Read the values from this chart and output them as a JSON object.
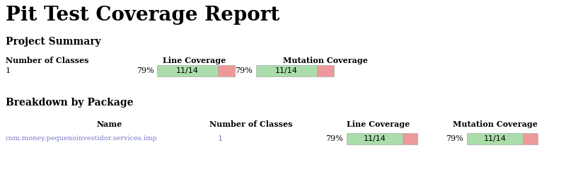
{
  "title": "Pit Test Coverage Report",
  "bg_color": "#ffffff",
  "title_color": "#000000",
  "title_fontsize": 20,
  "section1_label": "Project Summary",
  "section2_label": "Breakdown by Package",
  "section_fontsize": 10,
  "section_color": "#000000",
  "header_row1": [
    "Number of Classes",
    "Line Coverage",
    "Mutation Coverage"
  ],
  "data_row1": {
    "num_classes": "1",
    "line_pct": "79%",
    "line_bar_label": "11/14",
    "line_covered": 11,
    "line_total": 14,
    "mut_pct": "79%",
    "mut_bar_label": "11/14",
    "mut_covered": 11,
    "mut_total": 14
  },
  "header_row2": [
    "Name",
    "Number of Classes",
    "Line Coverage",
    "Mutation Coverage"
  ],
  "data_row2": {
    "name": "com.money.pequenoinvestidor.services.imp",
    "name_color": "#7777cc",
    "num_classes": "1",
    "line_pct": "79%",
    "line_bar_label": "11/14",
    "line_covered": 11,
    "line_total": 14,
    "mut_pct": "79%",
    "mut_bar_label": "11/14",
    "mut_covered": 11,
    "mut_total": 14
  },
  "bar_green": "#aaddaa",
  "bar_red": "#ee9999",
  "bar_border": "#aaaaaa",
  "header_fontsize": 8,
  "data_fontsize": 8,
  "fig_width": 8.0,
  "fig_height": 2.74,
  "dpi": 100
}
